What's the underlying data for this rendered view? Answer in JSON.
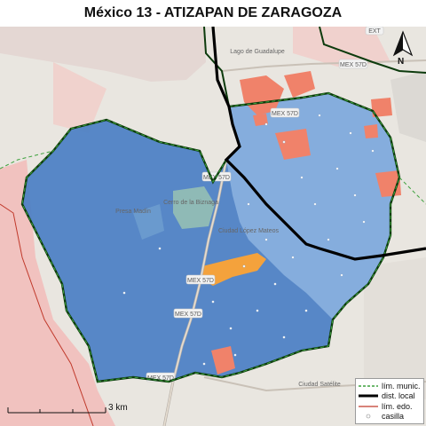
{
  "map": {
    "title": "México 13 - ATIZAPAN DE ZARAGOZA",
    "north_label": "N",
    "scale_label": "3 km",
    "road_labels": [
      "MEX 57D",
      "MEX 57D",
      "MEX 57D",
      "MEX 57D",
      "MEX 57D",
      "MEX 57D",
      "EXT"
    ],
    "place_labels": [
      "Lago de Guadalupe",
      "Ciudad López Mateos",
      "Presa Madín",
      "Cerro de la Biznaga",
      "Ciudad Satélite"
    ],
    "legend": [
      {
        "label": "lím. munic.",
        "style": "green-dashed"
      },
      {
        "label": "dist. local",
        "style": "black-thick"
      },
      {
        "label": "lím. edo.",
        "style": "red-line"
      },
      {
        "label": "casilla",
        "style": "white-circle"
      }
    ],
    "colors": {
      "district_fill": "#4a7fc4",
      "district_fill_light": "#8db4e0",
      "highlight_salmon": "#f0826a",
      "highlight_orange": "#f4a23c",
      "municipal_limit": "#2f7a2f",
      "state_limit": "#c0392b",
      "basemap": "#e9e6e0",
      "neighbor_state_pink": "#f1c2bf"
    }
  }
}
